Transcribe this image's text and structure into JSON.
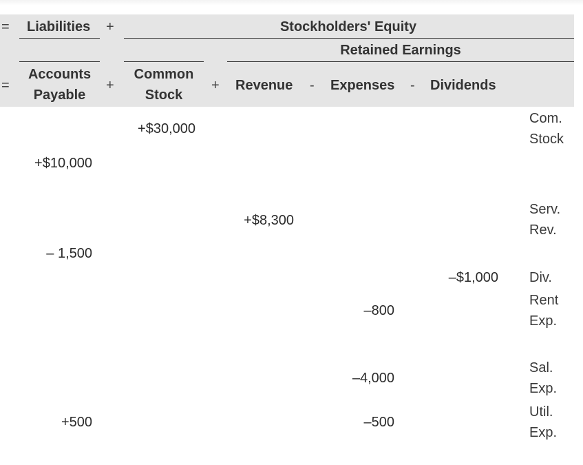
{
  "header": {
    "row1": {
      "equals": "=",
      "liabilities": "Liabilities",
      "plus": "+",
      "equity": "Stockholders' Equity"
    },
    "row2": {
      "retained": "Retained Earnings"
    },
    "row3": {
      "equals": "=",
      "ap_line1": "Accounts",
      "ap_line2": "Payable",
      "plus1": "+",
      "cs_line1": "Common",
      "cs_line2": "Stock",
      "plus2": "+",
      "revenue": "Revenue",
      "minus1": "-",
      "expenses": "Expenses",
      "minus2": "-",
      "dividends": "Dividends"
    }
  },
  "rows": {
    "r1": {
      "common_stock": "+$30,000",
      "label1": "Com.",
      "label2": "Stock"
    },
    "r2": {
      "accounts_payable": "+$10,000"
    },
    "r3": {
      "revenue": "+$8,300",
      "label1": "Serv.",
      "label2": "Rev."
    },
    "r4": {
      "accounts_payable": "– 1,500"
    },
    "r5": {
      "dividends": "–$1,000",
      "label1": "Div."
    },
    "r6": {
      "expenses": "–800",
      "label1": "Rent",
      "label2": "Exp."
    },
    "r7": {
      "expenses": "–4,000",
      "label1": "Sal.",
      "label2": "Exp."
    },
    "r8": {
      "accounts_payable": "+500",
      "expenses": "–500",
      "label1": "Util.",
      "label2": "Exp."
    }
  }
}
